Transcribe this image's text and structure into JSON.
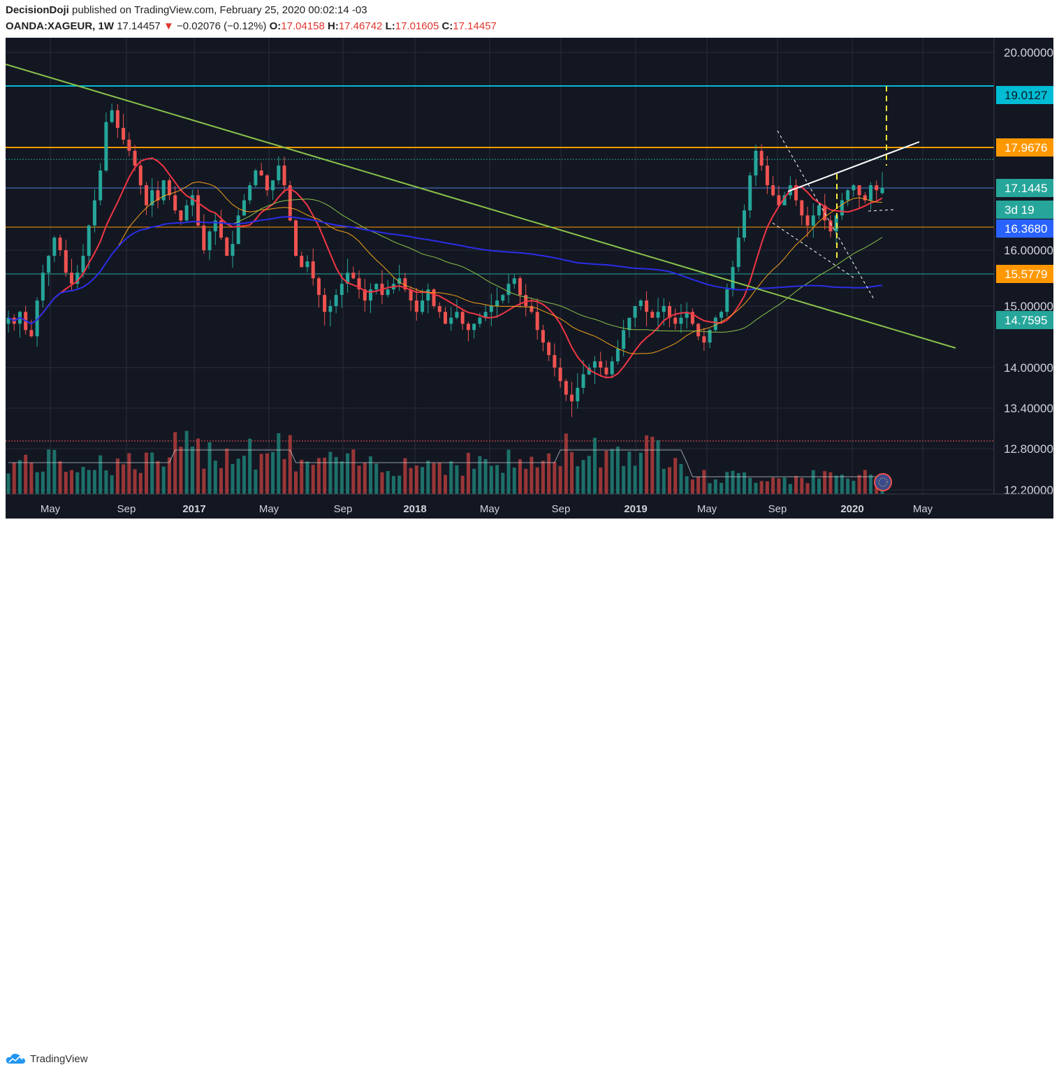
{
  "header": {
    "author": "DecisionDoji",
    "published_text": "published on TradingView.com, February 25, 2020 00:02:14 -03",
    "symbol": "OANDA:XAGEUR, 1W",
    "last": "17.14457",
    "change": "−0.02076 (−0.12%)",
    "o_label": "O:",
    "o_value": "17.04158",
    "h_label": "H:",
    "h_value": "17.46742",
    "l_label": "L:",
    "l_value": "17.01605",
    "c_label": "C:",
    "c_value": "17.14457"
  },
  "footer": {
    "brand": "TradingView"
  },
  "colors": {
    "background": "#131722",
    "up": "#26a69a",
    "down": "#ef5350",
    "ma_red": "#f23645",
    "ma_orange": "#f7a21b",
    "ma_green": "#8bc34a",
    "ma_blue": "#2a2ee8",
    "cyan_line": "#00bcd4",
    "orange_line": "#ff9800",
    "trendline": "#8bc34a"
  },
  "chart_data": {
    "type": "candlestick",
    "symbol": "OANDA:XAGEUR",
    "timeframe": "1W",
    "y_ticks": [
      "20.00000",
      "16.00000",
      "15.00000",
      "14.00000",
      "13.40000",
      "12.80000",
      "12.20000"
    ],
    "x_ticks": [
      "May",
      "Sep",
      "2017",
      "May",
      "Sep",
      "2018",
      "May",
      "Sep",
      "2019",
      "May",
      "Sep",
      "2020",
      "May"
    ],
    "price_labels": [
      {
        "text": "19.0127",
        "color": "#00bcd4"
      },
      {
        "text": "17.9676",
        "color": "#ff9800"
      },
      {
        "text": "17.1445",
        "color": "#26a69a"
      },
      {
        "text": "3d 19",
        "color": "#26a69a"
      },
      {
        "text": "16.3680",
        "color": "#2962ff"
      },
      {
        "text": "15.5779",
        "color": "#ff9800"
      },
      {
        "text": "14.7595",
        "color": "#26a69a"
      }
    ],
    "horizontal_levels": [
      19.0127,
      17.9676,
      17.1445,
      16.368,
      15.5779
    ],
    "close_approx": [
      14.8,
      14.7,
      14.9,
      14.6,
      14.5,
      15.1,
      15.6,
      15.9,
      16.2,
      16.0,
      15.6,
      15.4,
      15.6,
      15.9,
      16.4,
      16.9,
      17.5,
      18.4,
      18.6,
      18.3,
      18.1,
      17.9,
      17.6,
      17.2,
      16.8,
      17.1,
      16.9,
      17.3,
      17.0,
      16.7,
      16.5,
      16.8,
      17.0,
      16.4,
      16.0,
      16.3,
      16.5,
      16.2,
      15.9,
      16.1,
      16.6,
      16.9,
      17.2,
      17.5,
      17.4,
      17.1,
      17.3,
      17.6,
      17.2,
      16.5,
      15.9,
      15.7,
      15.8,
      15.5,
      15.2,
      14.9,
      15.0,
      15.2,
      15.4,
      15.6,
      15.5,
      15.3,
      15.1,
      15.3,
      15.4,
      15.2,
      15.3,
      15.4,
      15.5,
      15.3,
      15.1,
      14.9,
      15.1,
      15.3,
      15.0,
      14.9,
      14.7,
      14.8,
      14.9,
      14.7,
      14.6,
      14.7,
      14.8,
      14.9,
      15.0,
      15.1,
      15.2,
      15.4,
      15.5,
      15.2,
      15.0,
      14.9,
      14.6,
      14.4,
      14.2,
      14.0,
      13.8,
      13.6,
      13.5,
      13.7,
      13.9,
      14.0,
      14.1,
      14.0,
      13.9,
      14.1,
      14.3,
      14.6,
      14.8,
      15.0,
      15.1,
      14.9,
      14.8,
      14.9,
      15.0,
      14.8,
      14.7,
      14.8,
      14.9,
      14.7,
      14.5,
      14.4,
      14.6,
      14.8,
      14.9,
      15.3,
      15.7,
      16.2,
      16.7,
      17.4,
      17.9,
      17.6,
      17.2,
      17.0,
      16.8,
      17.0,
      17.2,
      16.9,
      16.6,
      16.4,
      16.6,
      16.8,
      16.5,
      16.3,
      16.6,
      16.9,
      17.1,
      17.2,
      17.0,
      16.9,
      17.2,
      17.1,
      17.14457
    ],
    "open": 17.04158,
    "high": 17.46742,
    "low": 17.01605,
    "close": 17.14457
  }
}
